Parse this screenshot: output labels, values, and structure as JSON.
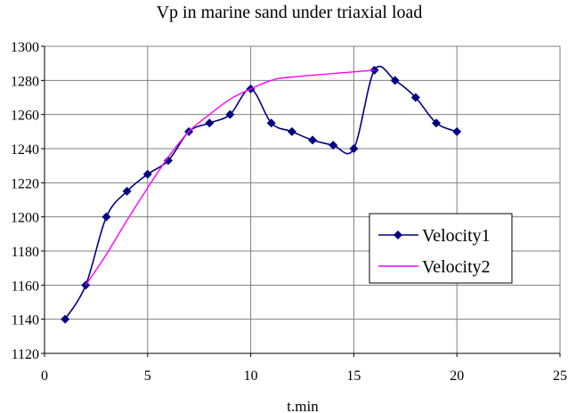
{
  "chart_data": {
    "type": "line",
    "title": "Vp in marine sand under triaxial load",
    "xlabel": "t.min",
    "ylabel": "",
    "xlim": [
      0,
      25
    ],
    "ylim": [
      1120,
      1300
    ],
    "xticks": [
      0,
      5,
      10,
      15,
      20,
      25
    ],
    "yticks": [
      1120,
      1140,
      1160,
      1180,
      1200,
      1220,
      1240,
      1260,
      1280,
      1300
    ],
    "grid": true,
    "legend": "center-right",
    "series": [
      {
        "name": "Velocity1",
        "color": "#000080",
        "marker": "diamond",
        "x": [
          1,
          2,
          3,
          4,
          5,
          6,
          7,
          8,
          9,
          10,
          11,
          12,
          13,
          14,
          15,
          16,
          17,
          18,
          19,
          20
        ],
        "y": [
          1140,
          1160,
          1200,
          1215,
          1225,
          1233,
          1250,
          1255,
          1260,
          1275,
          1255,
          1250,
          1245,
          1242,
          1240,
          1286,
          1280,
          1270,
          1255,
          1250
        ]
      },
      {
        "name": "Velocity2",
        "color": "#ff00ff",
        "marker": "none",
        "x": [
          2,
          3,
          4,
          5,
          6,
          7,
          8,
          9,
          10,
          11,
          12,
          16
        ],
        "y": [
          1160,
          1178,
          1198,
          1217,
          1235,
          1250,
          1260,
          1269,
          1275,
          1280,
          1282,
          1286
        ]
      }
    ]
  }
}
